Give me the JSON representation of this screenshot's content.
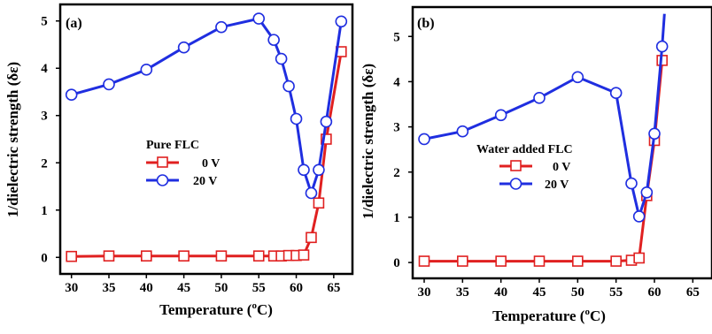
{
  "chart_data": [
    {
      "type": "line",
      "panel_label": "(a)",
      "xlabel_main": "Temperature (",
      "xlabel_sup": "o",
      "xlabel_end": "C)",
      "ylabel": "1/dielectric strength (δε)",
      "xlim": [
        28.5,
        67.5
      ],
      "ylim": [
        -0.35,
        5.35
      ],
      "xticks": [
        "30",
        "35",
        "40",
        "45",
        "50",
        "55",
        "60",
        "65"
      ],
      "yticks": [
        "0",
        "1",
        "2",
        "3",
        "4",
        "5"
      ],
      "legend_title": "Pure FLC",
      "legend_position": "center-left",
      "series": [
        {
          "name": "0 V",
          "color": "#e02020",
          "marker": "square",
          "x": [
            30,
            35,
            40,
            45,
            50,
            55,
            57,
            58,
            59,
            60,
            61,
            62,
            63,
            64,
            66
          ],
          "y": [
            0.02,
            0.03,
            0.03,
            0.03,
            0.03,
            0.03,
            0.03,
            0.03,
            0.04,
            0.04,
            0.05,
            0.42,
            1.15,
            2.5,
            4.35
          ]
        },
        {
          "name": "20 V",
          "color": "#1f2ee0",
          "marker": "circle",
          "x": [
            30,
            35,
            40,
            45,
            50,
            55,
            57,
            58,
            59,
            60,
            61,
            62,
            63,
            64,
            66
          ],
          "y": [
            3.44,
            3.66,
            3.97,
            4.44,
            4.87,
            5.05,
            4.6,
            4.2,
            3.62,
            2.93,
            1.85,
            1.36,
            1.85,
            2.87,
            4.99
          ]
        }
      ]
    },
    {
      "type": "line",
      "panel_label": "(b)",
      "xlabel_main": "Temperature (",
      "xlabel_sup": "o",
      "xlabel_end": "C)",
      "ylabel": "1/dielectric strength (δε)",
      "xlim": [
        28.5,
        67.5
      ],
      "ylim": [
        -0.35,
        5.65
      ],
      "xticks": [
        "30",
        "35",
        "40",
        "45",
        "50",
        "55",
        "60",
        "65"
      ],
      "yticks": [
        "0",
        "1",
        "2",
        "3",
        "4",
        "5"
      ],
      "legend_title": "Water added FLC",
      "legend_position": "center-left",
      "series": [
        {
          "name": "0 V",
          "color": "#e02020",
          "marker": "square",
          "x": [
            30,
            35,
            40,
            45,
            50,
            55,
            57,
            58,
            59,
            60,
            61
          ],
          "y": [
            0.03,
            0.03,
            0.03,
            0.03,
            0.03,
            0.03,
            0.05,
            0.1,
            1.48,
            2.7,
            4.47
          ]
        },
        {
          "name": "20 V",
          "color": "#1f2ee0",
          "marker": "circle",
          "x": [
            30,
            35,
            40,
            45,
            50,
            55,
            57,
            58,
            59,
            60,
            61,
            61.3
          ],
          "y": [
            2.73,
            2.9,
            3.26,
            3.64,
            4.1,
            3.75,
            1.75,
            1.02,
            1.55,
            2.85,
            4.78,
            5.5
          ]
        }
      ]
    }
  ]
}
